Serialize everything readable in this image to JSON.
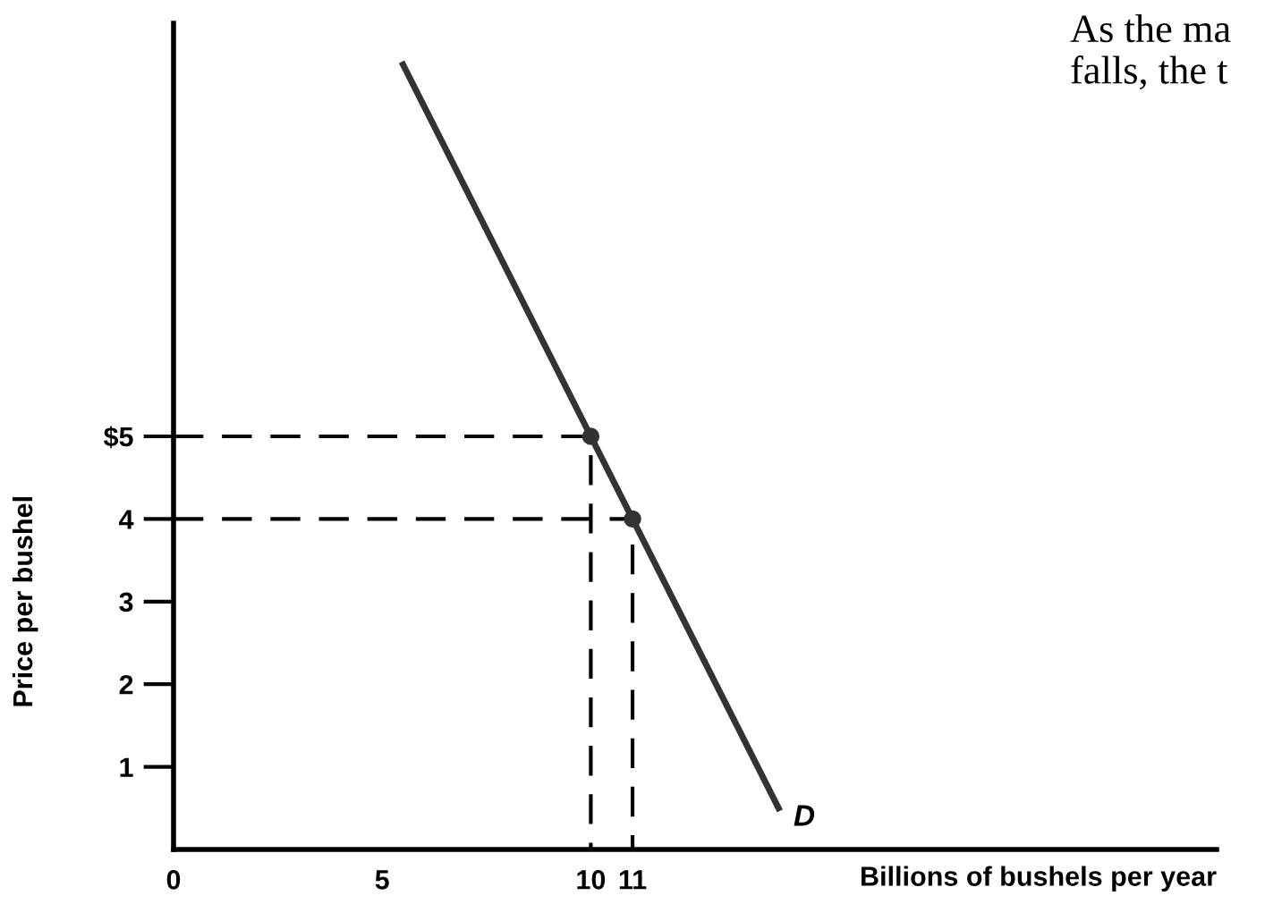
{
  "chart_data": {
    "type": "line",
    "xlabel": "Billions of bushels per year",
    "ylabel": "Price per bushel",
    "xlim": [
      0,
      25
    ],
    "ylim": [
      0,
      10
    ],
    "xticks": [
      0,
      5,
      10,
      11
    ],
    "yticks": [
      1,
      2,
      3,
      4,
      {
        "value": 5,
        "label": "$5"
      }
    ],
    "grid": false,
    "series": [
      {
        "x": [
          0,
          10,
          10
        ],
        "values": [
          5,
          5,
          0
        ],
        "color": "#000000",
        "line_style": "dashed"
      },
      {
        "x": [
          0,
          11,
          11
        ],
        "values": [
          4,
          4,
          0
        ],
        "color": "#000000",
        "line_style": "dashed"
      },
      {
        "x": [
          5.5,
          14.5
        ],
        "values": [
          9.5,
          0.5
        ],
        "color": "#333333",
        "line_style": "solid"
      },
      {
        "type": "scatter",
        "x": [
          10,
          11
        ],
        "values": [
          5,
          4
        ],
        "color": "#333333",
        "marker": "circle"
      }
    ],
    "annotations": [
      {
        "text": "D",
        "x": 14.5,
        "y": 0.5
      },
      "As the ma\nfalls, the t"
    ]
  }
}
